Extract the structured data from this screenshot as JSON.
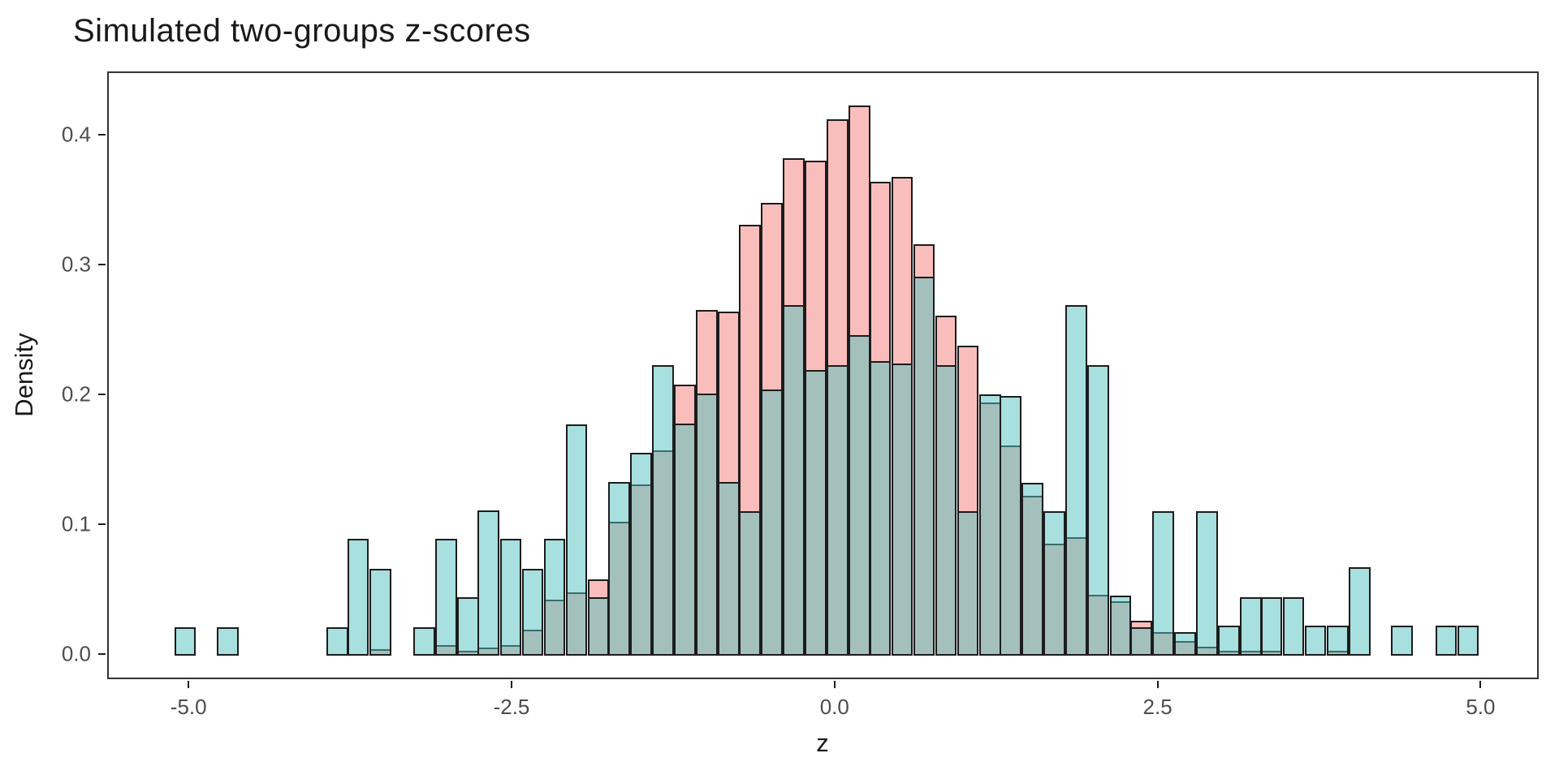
{
  "chart_data": {
    "type": "bar",
    "subtype": "overlaid-density-histogram",
    "title": "Simulated two-groups z-scores",
    "xlabel": "z",
    "ylabel": "Density",
    "x_tick_values": [
      -5.0,
      -2.5,
      0.0,
      2.5,
      5.0
    ],
    "x_tick_labels": [
      "-5.0",
      "-2.5",
      "0.0",
      "2.5",
      "5.0"
    ],
    "y_tick_values": [
      0.0,
      0.1,
      0.2,
      0.3,
      0.4
    ],
    "y_tick_labels": [
      "0.0",
      "0.1",
      "0.2",
      "0.3",
      "0.4"
    ],
    "x_range": [
      -5.63,
      5.45
    ],
    "y_range": [
      -0.0194,
      0.4487
    ],
    "grid": "off",
    "legend": "none",
    "bin_width": 0.1683,
    "colors": {
      "pink_fill_base": "#F37D79",
      "teal_fill_base": "#50C2BE",
      "fill_alpha": 0.5,
      "bar_outline": "#1c1c1c",
      "panel_border": "#333333",
      "tick_label": "#4d4d4d",
      "title_text": "#191919"
    },
    "bin_centers": [
      -5.04,
      -4.87,
      -4.71,
      -4.54,
      -4.37,
      -4.2,
      -4.03,
      -3.86,
      -3.7,
      -3.53,
      -3.36,
      -3.19,
      -3.02,
      -2.85,
      -2.69,
      -2.52,
      -2.35,
      -2.18,
      -2.01,
      -1.84,
      -1.68,
      -1.51,
      -1.34,
      -1.17,
      -1.0,
      -0.83,
      -0.67,
      -0.5,
      -0.33,
      -0.16,
      0.01,
      0.18,
      0.34,
      0.51,
      0.68,
      0.85,
      1.02,
      1.19,
      1.35,
      1.52,
      1.69,
      1.86,
      2.03,
      2.2,
      2.36,
      2.53,
      2.7,
      2.87,
      3.04,
      3.21,
      3.37,
      3.54,
      3.71,
      3.88,
      4.05,
      4.22,
      4.38,
      4.55,
      4.72,
      4.89
    ],
    "series": [
      {
        "name": "pink",
        "values": [
          0,
          0,
          0,
          0,
          0,
          0,
          0,
          0,
          0,
          0.005,
          0,
          0,
          0.008,
          0.004,
          0.006,
          0.008,
          0.02,
          0.043,
          0.049,
          0.059,
          0.103,
          0.132,
          0.158,
          0.209,
          0.266,
          0.265,
          0.332,
          0.349,
          0.383,
          0.381,
          0.413,
          0.424,
          0.365,
          0.369,
          0.317,
          0.262,
          0.239,
          0.195,
          0.162,
          0.123,
          0.086,
          0.091,
          0.047,
          0.042,
          0.027,
          0.018,
          0.011,
          0.007,
          0.004,
          0.004,
          0.004,
          0,
          0,
          0.004,
          0,
          0,
          0,
          0,
          0,
          0
        ]
      },
      {
        "name": "teal",
        "values": [
          0.022,
          0,
          0.022,
          0,
          0,
          0,
          0,
          0.022,
          0.09,
          0.067,
          0,
          0.022,
          0.09,
          0.045,
          0.112,
          0.09,
          0.067,
          0.09,
          0.178,
          0.045,
          0.134,
          0.156,
          0.224,
          0.179,
          0.202,
          0.134,
          0.111,
          0.205,
          0.27,
          0.22,
          0.224,
          0.247,
          0.227,
          0.225,
          0.292,
          0.224,
          0.111,
          0.201,
          0.2,
          0.133,
          0.111,
          0.27,
          0.224,
          0.046,
          0.022,
          0.111,
          0.018,
          0.111,
          0.023,
          0.045,
          0.045,
          0.045,
          0.023,
          0.023,
          0.068,
          0,
          0.023,
          0,
          0.023,
          0.023
        ]
      }
    ]
  }
}
